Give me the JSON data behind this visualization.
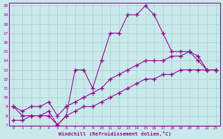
{
  "xlabel": "Windchill (Refroidissement éolien,°C)",
  "background_color": "#c8eaea",
  "line_color": "#990099",
  "grid_color": "#aacccc",
  "x_data": [
    0,
    1,
    2,
    3,
    4,
    5,
    6,
    7,
    8,
    9,
    10,
    11,
    12,
    13,
    14,
    15,
    16,
    17,
    18,
    19,
    20,
    21,
    22,
    23
  ],
  "y_main": [
    9,
    8,
    8,
    8,
    8,
    7,
    8,
    13,
    13,
    11,
    14,
    17,
    17,
    19,
    19,
    20,
    19,
    17,
    15,
    15,
    15,
    14,
    13,
    13
  ],
  "y_line1": [
    9,
    8.5,
    9,
    9,
    9.5,
    8,
    9,
    9.5,
    10,
    10.5,
    11,
    12,
    12.5,
    13,
    13.5,
    14,
    14,
    14,
    14.5,
    14.5,
    15,
    14.5,
    13,
    13
  ],
  "y_line2": [
    7.5,
    7.5,
    8,
    8,
    8.5,
    7,
    8,
    8.5,
    9,
    9,
    9.5,
    10,
    10.5,
    11,
    11.5,
    12,
    12,
    12.5,
    12.5,
    13,
    13,
    13,
    13,
    13
  ],
  "ylim": [
    7,
    20
  ],
  "xlim": [
    -0.5,
    23.5
  ],
  "yticks": [
    7,
    8,
    9,
    10,
    11,
    12,
    13,
    14,
    15,
    16,
    17,
    18,
    19,
    20
  ],
  "xticks": [
    0,
    1,
    2,
    3,
    4,
    5,
    6,
    7,
    8,
    9,
    10,
    11,
    12,
    13,
    14,
    15,
    16,
    17,
    18,
    19,
    20,
    21,
    22,
    23
  ]
}
